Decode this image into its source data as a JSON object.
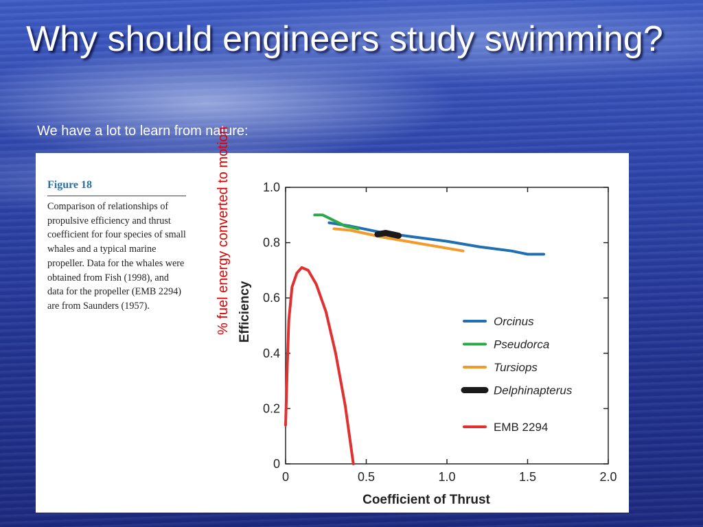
{
  "slide": {
    "title": "Why should engineers study swimming?",
    "subtitle": "We have a lot to learn from nature:",
    "rotated_annotation": "% fuel energy converted to motion",
    "annotation_color": "#e00000"
  },
  "figure_caption": {
    "label": "Figure 18",
    "text": "Comparison of relationships of propulsive efficiency and thrust coefficient for four species of small whales and a typical marine propeller. Data for the whales were obtained from Fish (1998), and data for the propeller (EMB 2294) are from Saunders (1957)."
  },
  "chart_data": {
    "type": "line",
    "title": "",
    "xlabel": "Coefficient of Thrust",
    "ylabel": "Efficiency",
    "xlim": [
      0,
      2.0
    ],
    "ylim": [
      0,
      1.0
    ],
    "x_ticks": [
      0,
      0.5,
      1.0,
      1.5,
      2.0
    ],
    "x_tick_labels": [
      "0",
      "0.5",
      "1.0",
      "1.5",
      "2.0"
    ],
    "y_ticks": [
      0,
      0.2,
      0.4,
      0.6,
      0.8,
      1.0
    ],
    "y_tick_labels": [
      "0",
      "0.2",
      "0.4",
      "0.6",
      "0.8",
      "1.0"
    ],
    "legend_position": "right",
    "series": [
      {
        "name": "Orcinus",
        "italic": true,
        "color": "#1f6fb2",
        "width": 4,
        "points": [
          [
            0.27,
            0.872
          ],
          [
            0.4,
            0.86
          ],
          [
            0.6,
            0.836
          ],
          [
            0.8,
            0.82
          ],
          [
            1.0,
            0.805
          ],
          [
            1.2,
            0.785
          ],
          [
            1.4,
            0.77
          ],
          [
            1.5,
            0.758
          ],
          [
            1.6,
            0.758
          ]
        ]
      },
      {
        "name": "Pseudorca",
        "italic": true,
        "color": "#2ca84a",
        "width": 4,
        "points": [
          [
            0.18,
            0.9
          ],
          [
            0.23,
            0.9
          ],
          [
            0.3,
            0.88
          ],
          [
            0.37,
            0.86
          ],
          [
            0.45,
            0.85
          ]
        ]
      },
      {
        "name": "Tursiops",
        "italic": true,
        "color": "#f39a2c",
        "width": 4,
        "points": [
          [
            0.3,
            0.85
          ],
          [
            0.4,
            0.845
          ],
          [
            0.6,
            0.82
          ],
          [
            0.8,
            0.8
          ],
          [
            1.0,
            0.78
          ],
          [
            1.1,
            0.77
          ]
        ]
      },
      {
        "name": "Delphinapterus",
        "italic": true,
        "color": "#1a1a1a",
        "width": 9,
        "points": [
          [
            0.57,
            0.83
          ],
          [
            0.62,
            0.835
          ],
          [
            0.7,
            0.825
          ]
        ]
      },
      {
        "name": "EMB 2294",
        "italic": false,
        "color": "#e03030",
        "width": 4,
        "points": [
          [
            0.0,
            0.14
          ],
          [
            0.01,
            0.35
          ],
          [
            0.02,
            0.52
          ],
          [
            0.04,
            0.64
          ],
          [
            0.07,
            0.69
          ],
          [
            0.1,
            0.71
          ],
          [
            0.14,
            0.7
          ],
          [
            0.19,
            0.65
          ],
          [
            0.25,
            0.55
          ],
          [
            0.31,
            0.4
          ],
          [
            0.37,
            0.21
          ],
          [
            0.42,
            0.0
          ]
        ]
      }
    ]
  }
}
